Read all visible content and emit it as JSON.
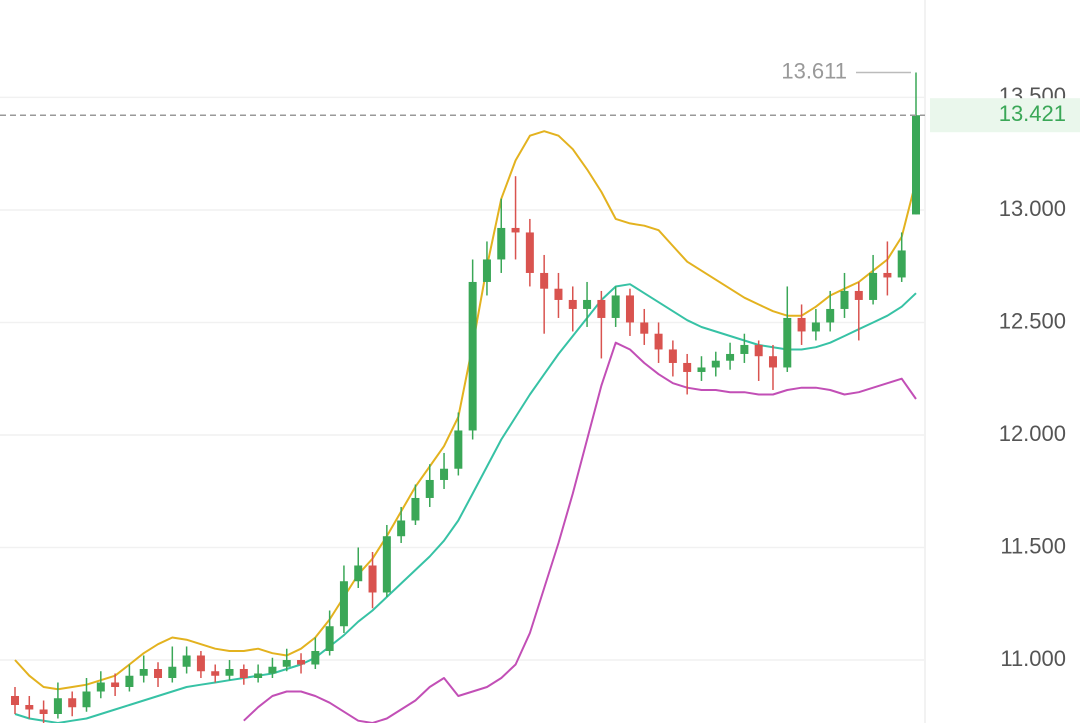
{
  "chart_data": {
    "type": "candlestick",
    "open": [
      10.84,
      10.8,
      10.78,
      10.76,
      10.83,
      10.79,
      10.86,
      10.9,
      10.88,
      10.93,
      10.96,
      10.92,
      10.97,
      11.02,
      10.95,
      10.93,
      10.96,
      10.92,
      10.94,
      10.97,
      11.0,
      10.98,
      11.04,
      11.15,
      11.35,
      11.42,
      11.3,
      11.55,
      11.62,
      11.72,
      11.8,
      11.85,
      12.02,
      12.68,
      12.78,
      12.92,
      12.9,
      12.72,
      12.65,
      12.6,
      12.56,
      12.6,
      12.52,
      12.62,
      12.5,
      12.45,
      12.38,
      12.32,
      12.28,
      12.3,
      12.33,
      12.36,
      12.4,
      12.35,
      12.3,
      12.52,
      12.46,
      12.5,
      12.56,
      12.64,
      12.6,
      12.72,
      12.7,
      12.98
    ],
    "high": [
      10.88,
      10.84,
      10.82,
      10.9,
      10.86,
      10.92,
      10.95,
      10.94,
      10.98,
      11.02,
      10.99,
      11.06,
      11.06,
      11.04,
      10.98,
      11.0,
      10.98,
      10.98,
      11.01,
      11.05,
      11.03,
      11.1,
      11.22,
      11.42,
      11.5,
      11.48,
      11.6,
      11.68,
      11.78,
      11.87,
      11.92,
      12.1,
      12.78,
      12.86,
      13.05,
      13.15,
      12.96,
      12.8,
      12.72,
      12.66,
      12.68,
      12.64,
      12.66,
      12.65,
      12.56,
      12.5,
      12.42,
      12.36,
      12.35,
      12.37,
      12.41,
      12.45,
      12.42,
      12.4,
      12.66,
      12.58,
      12.56,
      12.64,
      12.72,
      12.68,
      12.8,
      12.86,
      12.9,
      13.611
    ],
    "low": [
      10.76,
      10.74,
      10.72,
      10.74,
      10.75,
      10.77,
      10.83,
      10.84,
      10.86,
      10.9,
      10.88,
      10.9,
      10.94,
      10.92,
      10.9,
      10.91,
      10.89,
      10.9,
      10.92,
      10.95,
      10.94,
      10.96,
      11.02,
      11.12,
      11.32,
      11.23,
      11.28,
      11.52,
      11.6,
      11.68,
      11.76,
      11.82,
      11.98,
      12.62,
      12.72,
      12.78,
      12.66,
      12.45,
      12.52,
      12.46,
      12.48,
      12.34,
      12.48,
      12.44,
      12.4,
      12.32,
      12.26,
      12.18,
      12.24,
      12.26,
      12.29,
      12.32,
      12.24,
      12.2,
      12.28,
      12.4,
      12.42,
      12.46,
      12.52,
      12.42,
      12.58,
      12.62,
      12.68,
      12.98
    ],
    "close": [
      10.8,
      10.78,
      10.76,
      10.83,
      10.79,
      10.86,
      10.9,
      10.88,
      10.93,
      10.96,
      10.92,
      10.97,
      11.02,
      10.95,
      10.93,
      10.96,
      10.92,
      10.94,
      10.97,
      11.0,
      10.98,
      11.04,
      11.15,
      11.35,
      11.42,
      11.3,
      11.55,
      11.62,
      11.72,
      11.8,
      11.85,
      12.02,
      12.68,
      12.78,
      12.92,
      12.9,
      12.72,
      12.65,
      12.6,
      12.56,
      12.6,
      12.52,
      12.62,
      12.5,
      12.45,
      12.38,
      12.32,
      12.28,
      12.3,
      12.33,
      12.36,
      12.4,
      12.35,
      12.3,
      12.52,
      12.46,
      12.5,
      12.56,
      12.64,
      12.6,
      12.72,
      12.7,
      12.82,
      13.421
    ],
    "up_color": "#3aa757",
    "down_color": "#d9534f",
    "lines": [
      {
        "color": "#e3b21f",
        "values": [
          11.0,
          10.93,
          10.88,
          10.87,
          10.88,
          10.89,
          10.91,
          10.93,
          10.98,
          11.03,
          11.07,
          11.1,
          11.09,
          11.07,
          11.05,
          11.04,
          11.04,
          11.05,
          11.03,
          11.02,
          11.05,
          11.1,
          11.18,
          11.28,
          11.38,
          11.45,
          11.55,
          11.66,
          11.77,
          11.86,
          11.95,
          12.08,
          12.4,
          12.75,
          13.05,
          13.22,
          13.33,
          13.35,
          13.33,
          13.27,
          13.18,
          13.08,
          12.96,
          12.94,
          12.93,
          12.91,
          12.84,
          12.77,
          12.73,
          12.69,
          12.65,
          12.61,
          12.58,
          12.55,
          12.53,
          12.53,
          12.57,
          12.62,
          12.65,
          12.68,
          12.73,
          12.78,
          12.88,
          13.13
        ]
      },
      {
        "color": "#37c2a5",
        "values": [
          10.76,
          10.74,
          10.73,
          10.72,
          10.73,
          10.74,
          10.76,
          10.78,
          10.8,
          10.82,
          10.84,
          10.86,
          10.88,
          10.89,
          10.9,
          10.91,
          10.92,
          10.93,
          10.94,
          10.96,
          10.98,
          11.01,
          11.06,
          11.11,
          11.17,
          11.22,
          11.28,
          11.34,
          11.4,
          11.46,
          11.53,
          11.62,
          11.74,
          11.86,
          11.98,
          12.08,
          12.18,
          12.27,
          12.36,
          12.44,
          12.52,
          12.6,
          12.66,
          12.67,
          12.63,
          12.59,
          12.55,
          12.51,
          12.48,
          12.46,
          12.44,
          12.42,
          12.4,
          12.39,
          12.38,
          12.38,
          12.39,
          12.41,
          12.44,
          12.47,
          12.5,
          12.53,
          12.57,
          12.63
        ]
      },
      {
        "color": "#c24fb6",
        "values": [
          null,
          null,
          null,
          null,
          null,
          null,
          null,
          null,
          null,
          null,
          null,
          null,
          null,
          null,
          null,
          null,
          10.73,
          10.79,
          10.84,
          10.86,
          10.86,
          10.84,
          10.81,
          10.77,
          10.73,
          10.72,
          10.74,
          10.78,
          10.82,
          10.88,
          10.92,
          10.84,
          10.86,
          10.88,
          10.92,
          10.98,
          11.12,
          11.32,
          11.52,
          11.74,
          11.98,
          12.22,
          12.41,
          12.38,
          12.32,
          12.27,
          12.23,
          12.21,
          12.2,
          12.2,
          12.19,
          12.19,
          12.18,
          12.18,
          12.2,
          12.21,
          12.21,
          12.2,
          12.18,
          12.19,
          12.21,
          12.23,
          12.25,
          12.16
        ]
      }
    ],
    "last_price": 13.421,
    "high_marker": 13.611,
    "ylim": [
      10.72,
      13.933
    ],
    "yticks": [
      {
        "value": 11,
        "label": "11.000"
      },
      {
        "value": 11.5,
        "label": "11.500"
      },
      {
        "value": 12,
        "label": "12.000"
      },
      {
        "value": 12.5,
        "label": "12.500"
      },
      {
        "value": 13,
        "label": "13.000"
      },
      {
        "value": 13.5,
        "label": "13.500"
      }
    ],
    "grid": true
  }
}
